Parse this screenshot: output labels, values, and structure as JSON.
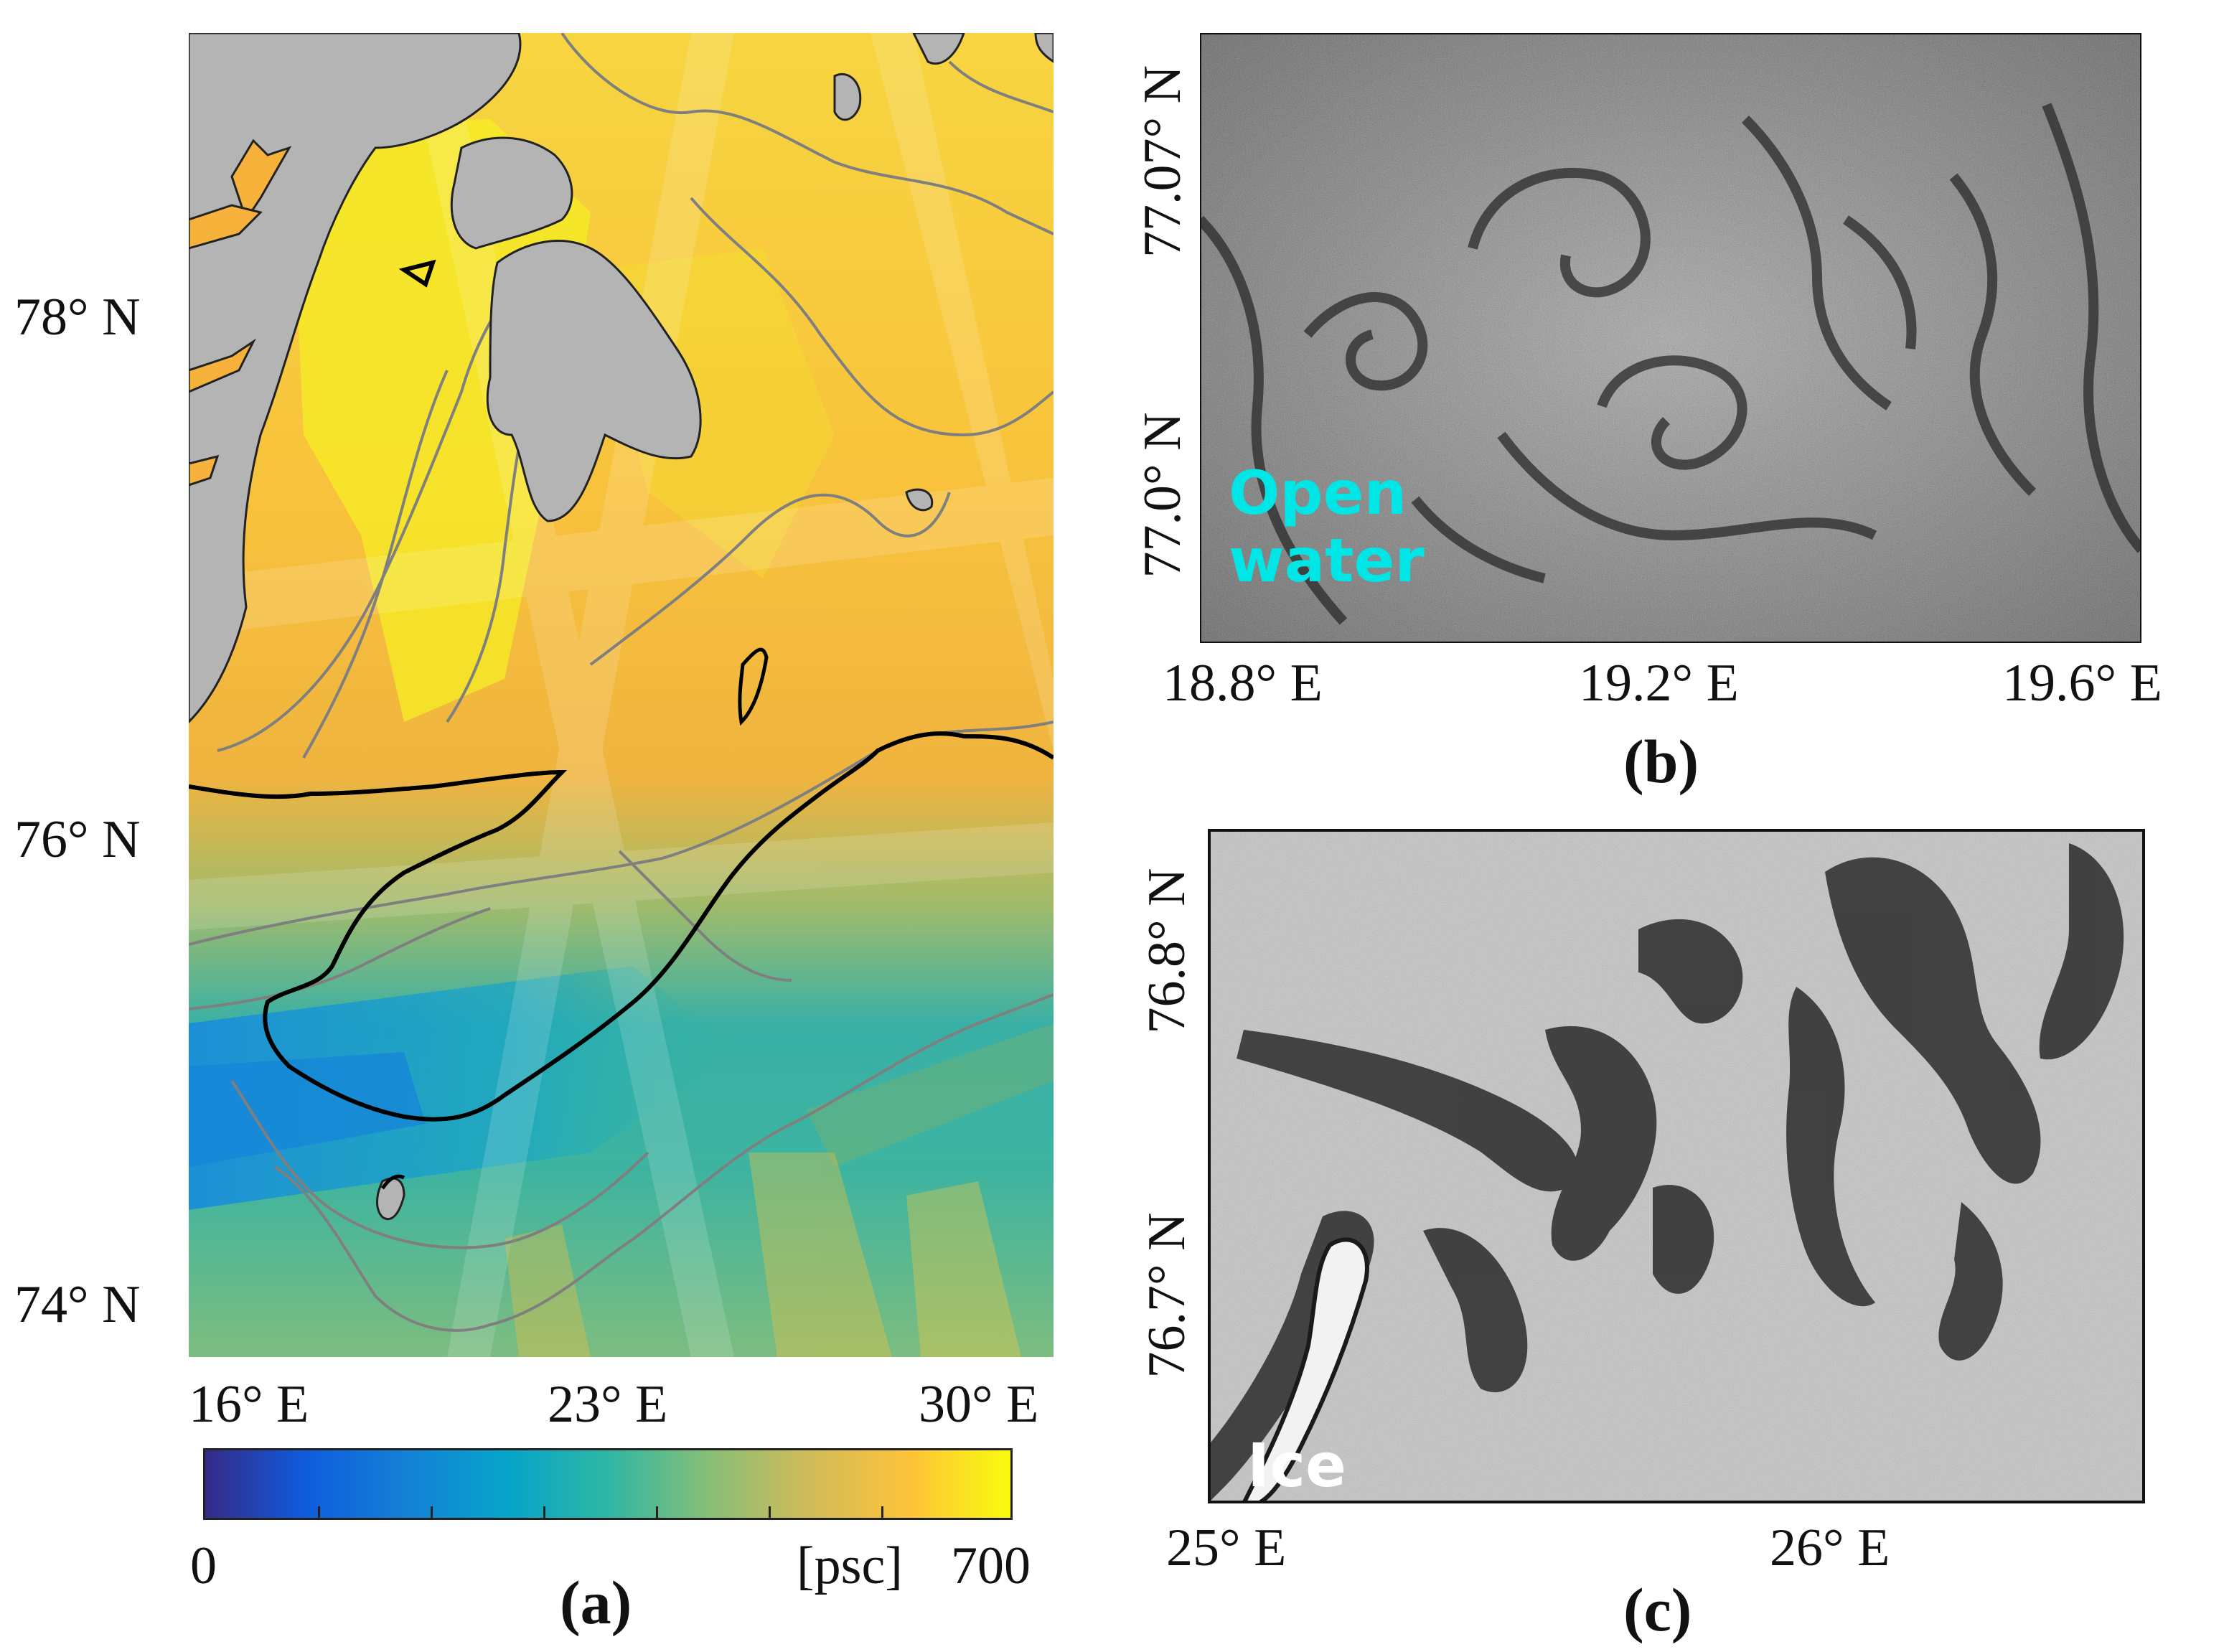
{
  "panel_a": {
    "caption": "(a)",
    "lat_ticks": [
      "78° N",
      "76° N",
      "74° N"
    ],
    "lon_ticks": [
      "16° E",
      "23° E",
      "30° E"
    ],
    "colorbar": {
      "min_label": "0",
      "max_label": "700",
      "unit_label": "[psc]",
      "colors": [
        "#352a87",
        "#0f5cdd",
        "#1481d6",
        "#06a4ca",
        "#2eb7a4",
        "#87bf77",
        "#d1bb59",
        "#fdc338",
        "#f9fb0e"
      ]
    },
    "colors": {
      "land": "#b4b4b4",
      "contour": "#7f7f7f",
      "ice_edge": "#000000"
    }
  },
  "panel_b": {
    "caption": "(b)",
    "lat_ticks": [
      "77.07° N",
      "77.0° N"
    ],
    "lon_ticks": [
      "18.8° E",
      "19.2° E",
      "19.6° E"
    ],
    "overlay_label": "Open\nwater",
    "overlay_color": "#00e5e5"
  },
  "panel_c": {
    "caption": "(c)",
    "lat_ticks": [
      "76.8° N",
      "76.7° N"
    ],
    "lon_ticks": [
      "25° E",
      "26° E"
    ],
    "overlay_label": "Ice",
    "overlay_color": "#ffffff"
  }
}
